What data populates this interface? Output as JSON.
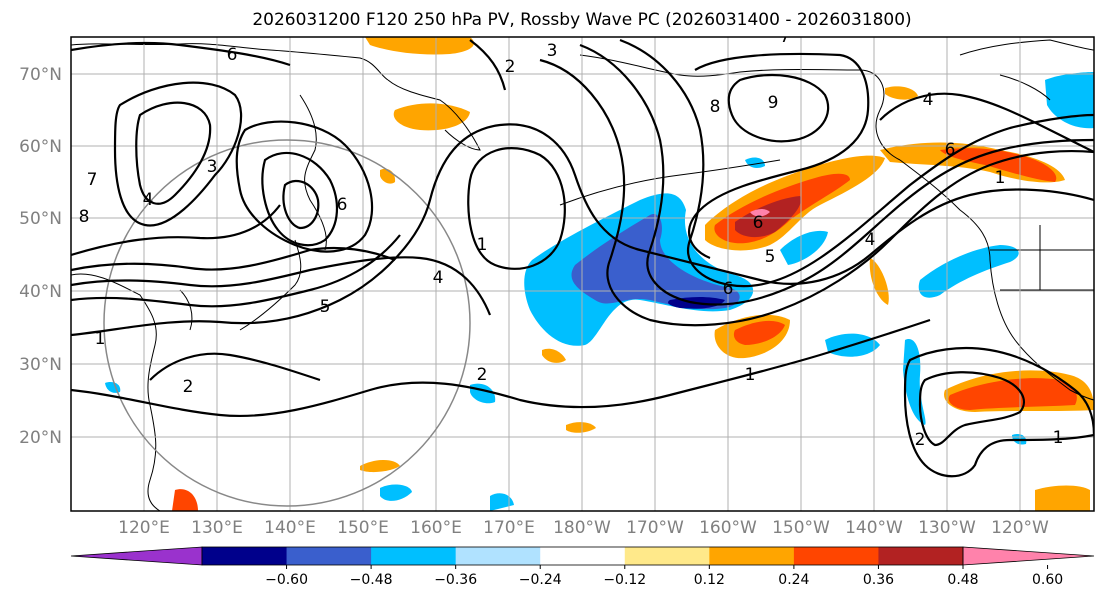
{
  "title": "2026031200 F120 250 hPa PV, Rossby Wave PC (2026031400 - 2026031800)",
  "lat_labels": [
    "70°N",
    "60°N",
    "50°N",
    "40°N",
    "30°N",
    "20°N"
  ],
  "lon_labels": [
    "120°E",
    "130°E",
    "140°E",
    "150°E",
    "160°E",
    "170°E",
    "180°W",
    "170°W",
    "160°W",
    "150°W",
    "140°W",
    "130°W",
    "120°W"
  ],
  "colorbar": {
    "tick_labels": [
      "−0.60",
      "−0.48",
      "−0.36",
      "−0.24",
      "−0.12",
      "0.12",
      "0.24",
      "0.36",
      "0.48",
      "0.60"
    ],
    "colors": [
      "#9a32cd",
      "#00008b",
      "#3a5fcd",
      "#00bfff",
      "#b0e2ff",
      "#ffffff",
      "#ffe98a",
      "#ffa500",
      "#ff4500",
      "#b22222",
      "#ff82ab"
    ]
  },
  "contour_labels": [
    "6",
    "3",
    "2",
    "7",
    "8",
    "9",
    "4",
    "6",
    "3",
    "4",
    "1",
    "6",
    "5",
    "6",
    "1",
    "2",
    "1",
    "2",
    "5",
    "4",
    "1",
    "2",
    "1",
    "4",
    "8",
    "7",
    "6"
  ]
}
